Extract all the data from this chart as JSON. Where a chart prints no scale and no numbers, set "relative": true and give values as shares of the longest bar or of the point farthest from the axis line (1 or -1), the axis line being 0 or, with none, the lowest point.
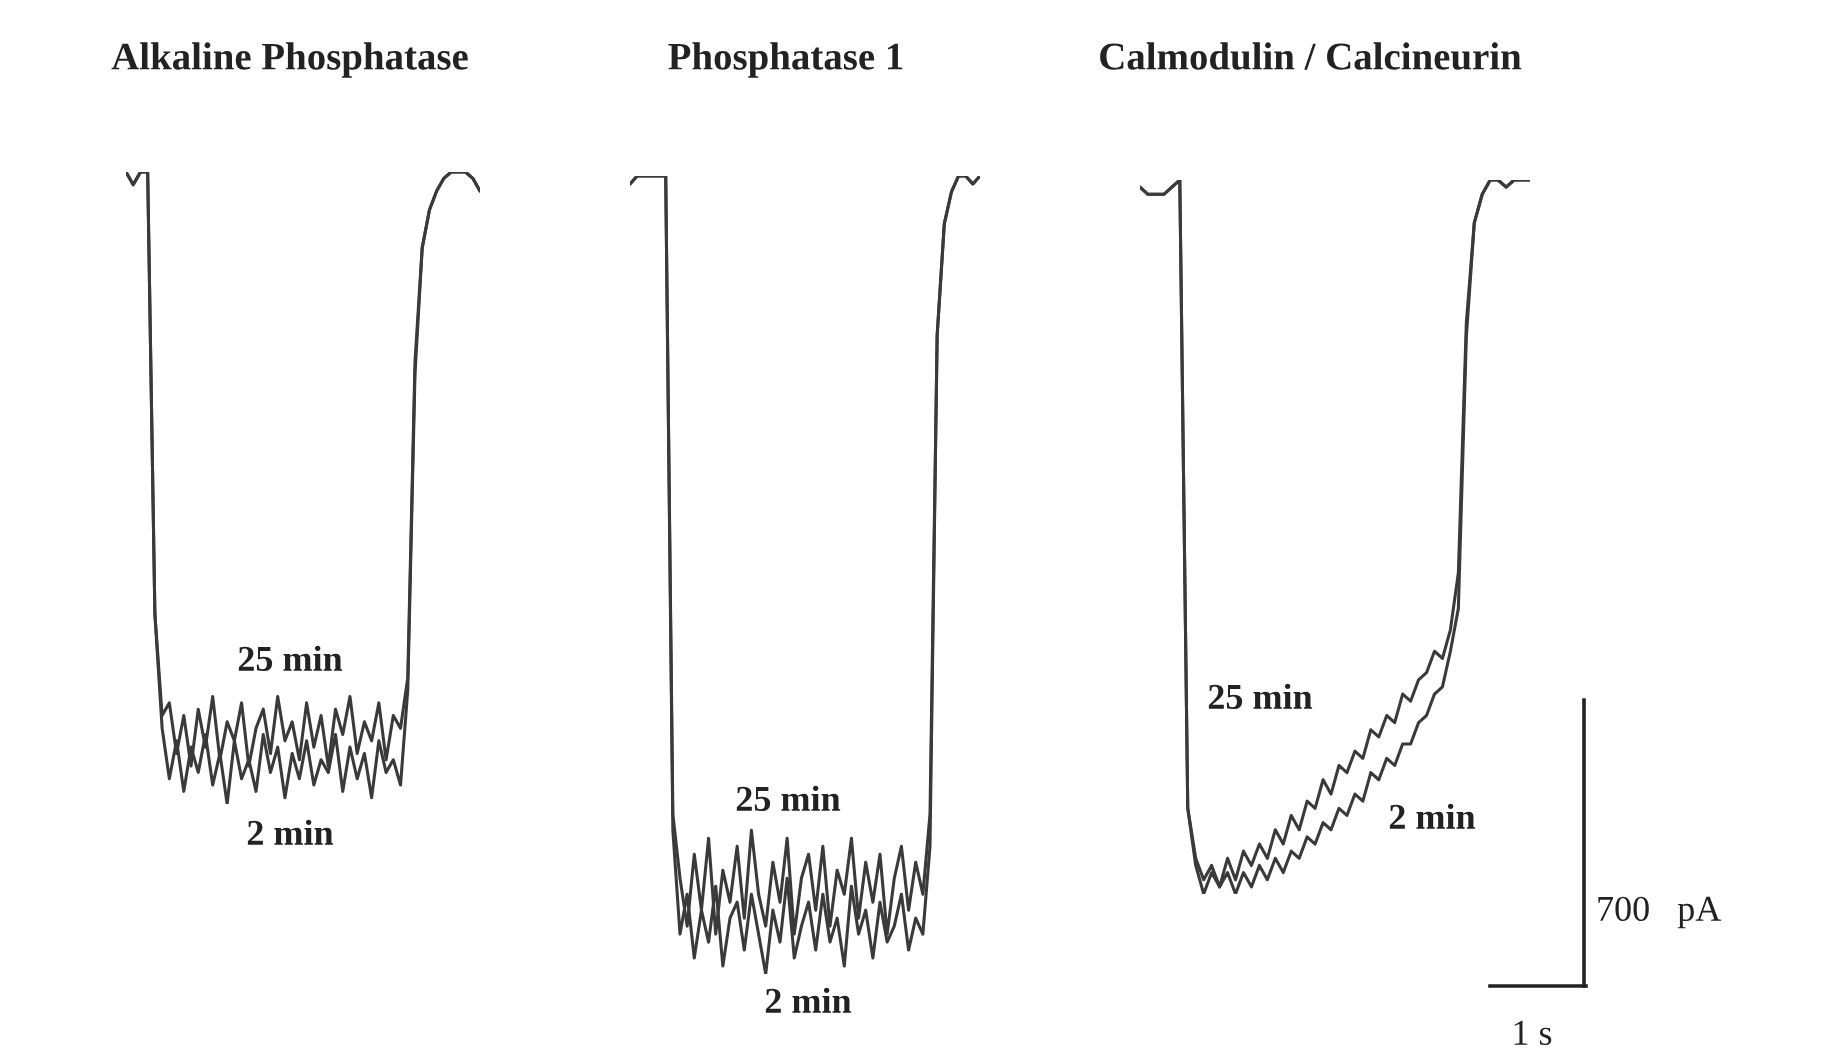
{
  "chart_data": [
    {
      "type": "line",
      "title": "Alkaline Phosphatase",
      "relative": true,
      "categories": [
        null,
        null,
        null,
        null,
        null,
        null,
        null,
        null,
        null,
        null,
        null,
        null,
        null,
        null,
        null,
        null,
        null,
        null,
        null,
        null,
        null,
        null,
        null,
        null,
        null,
        null,
        null,
        null,
        null,
        null,
        null,
        null,
        null,
        null,
        null,
        null,
        null,
        null,
        null,
        null,
        null,
        null,
        null,
        null,
        null,
        null,
        null,
        null,
        null,
        null
      ],
      "series": [
        {
          "name": "25 min",
          "color": "#3a3a3a",
          "values": [
            1.0,
            0.98,
            1.0,
            1.0,
            0.3,
            0.14,
            0.16,
            0.08,
            0.14,
            0.06,
            0.15,
            0.09,
            0.17,
            0.07,
            0.13,
            0.1,
            0.16,
            0.06,
            0.12,
            0.15,
            0.08,
            0.17,
            0.1,
            0.13,
            0.07,
            0.16,
            0.09,
            0.14,
            0.06,
            0.15,
            0.11,
            0.17,
            0.08,
            0.13,
            0.1,
            0.16,
            0.07,
            0.14,
            0.12,
            0.2,
            0.7,
            0.88,
            0.94,
            0.97,
            0.99,
            1.0,
            1.0,
            1.0,
            0.99,
            0.97
          ]
        },
        {
          "name": "2 min",
          "color": "#3a3a3a",
          "values": [
            1.0,
            0.98,
            1.0,
            1.0,
            0.3,
            0.12,
            0.04,
            0.1,
            0.02,
            0.09,
            0.05,
            0.11,
            0.03,
            0.08,
            0,
            0.1,
            0.04,
            0.07,
            0.02,
            0.11,
            0.05,
            0.09,
            0.01,
            0.08,
            0.04,
            0.1,
            0.03,
            0.07,
            0.05,
            0.11,
            0.02,
            0.09,
            0.04,
            0.08,
            0.01,
            0.1,
            0.05,
            0.07,
            0.03,
            0.18,
            0.68,
            0.88,
            0.94,
            0.97,
            0.99,
            1.0,
            1.0,
            1.0,
            0.99,
            0.97
          ]
        }
      ]
    },
    {
      "type": "line",
      "title": "Phosphatase 1",
      "relative": true,
      "categories": [
        null,
        null,
        null,
        null,
        null,
        null,
        null,
        null,
        null,
        null,
        null,
        null,
        null,
        null,
        null,
        null,
        null,
        null,
        null,
        null,
        null,
        null,
        null,
        null,
        null,
        null,
        null,
        null,
        null,
        null,
        null,
        null,
        null,
        null,
        null,
        null,
        null,
        null,
        null,
        null,
        null,
        null,
        null,
        null,
        null,
        null,
        null,
        null,
        null,
        null
      ],
      "series": [
        {
          "name": "25 min",
          "color": "#3a3a3a",
          "values": [
            0.99,
            1.0,
            1.0,
            1.0,
            1.0,
            1.0,
            0.2,
            0.12,
            0.06,
            0.15,
            0.08,
            0.17,
            0.05,
            0.13,
            0.09,
            0.16,
            0.07,
            0.18,
            0.1,
            0.06,
            0.14,
            0.09,
            0.17,
            0.05,
            0.12,
            0.15,
            0.08,
            0.16,
            0.06,
            0.13,
            0.1,
            0.17,
            0.07,
            0.14,
            0.09,
            0.15,
            0.05,
            0.12,
            0.16,
            0.08,
            0.14,
            0.1,
            0.2,
            0.8,
            0.94,
            0.98,
            1.0,
            1.0,
            0.99,
            1.0
          ]
        },
        {
          "name": "2 min",
          "color": "#3a3a3a",
          "values": [
            0.99,
            1.0,
            1.0,
            1.0,
            1.0,
            1.0,
            0.18,
            0.05,
            0.1,
            0.02,
            0.08,
            0.04,
            0.11,
            0.01,
            0.07,
            0.09,
            0.03,
            0.1,
            0.05,
            0,
            0.08,
            0.04,
            0.12,
            0.02,
            0.06,
            0.09,
            0.03,
            0.1,
            0.04,
            0.07,
            0.01,
            0.11,
            0.05,
            0.08,
            0.02,
            0.09,
            0.04,
            0.06,
            0.1,
            0.03,
            0.07,
            0.05,
            0.16,
            0.8,
            0.94,
            0.98,
            1.0,
            1.0,
            0.99,
            1.0
          ]
        }
      ]
    },
    {
      "type": "line",
      "title": "Calmodulin / Calcineurin",
      "relative": true,
      "annotations": [
        "700   pA",
        "1 s"
      ],
      "categories": [
        null,
        null,
        null,
        null,
        null,
        null,
        null,
        null,
        null,
        null,
        null,
        null,
        null,
        null,
        null,
        null,
        null,
        null,
        null,
        null,
        null,
        null,
        null,
        null,
        null,
        null,
        null,
        null,
        null,
        null,
        null,
        null,
        null,
        null,
        null,
        null,
        null,
        null,
        null,
        null,
        null,
        null,
        null,
        null,
        null,
        null,
        null,
        null,
        null,
        null
      ],
      "series": [
        {
          "name": "25 min",
          "color": "#3a3a3a",
          "values": [
            0.99,
            0.98,
            0.98,
            0.98,
            0.99,
            1.0,
            0.12,
            0.05,
            0.02,
            0.04,
            0.01,
            0.05,
            0.02,
            0.06,
            0.04,
            0.07,
            0.05,
            0.09,
            0.07,
            0.11,
            0.09,
            0.13,
            0.12,
            0.16,
            0.14,
            0.18,
            0.17,
            0.2,
            0.19,
            0.23,
            0.22,
            0.25,
            0.24,
            0.28,
            0.27,
            0.3,
            0.31,
            0.34,
            0.33,
            0.37,
            0.45,
            0.8,
            0.94,
            0.98,
            1.0,
            1.0,
            0.99,
            1.0,
            1.0,
            1.0
          ]
        },
        {
          "name": "2 min",
          "color": "#3a3a3a",
          "values": [
            0.99,
            0.98,
            0.98,
            0.98,
            0.99,
            1.0,
            0.12,
            0.04,
            0.0,
            0.03,
            0.01,
            0.03,
            0.0,
            0.03,
            0.01,
            0.04,
            0.02,
            0.05,
            0.03,
            0.06,
            0.05,
            0.08,
            0.07,
            0.1,
            0.09,
            0.12,
            0.11,
            0.14,
            0.13,
            0.17,
            0.16,
            0.19,
            0.18,
            0.21,
            0.21,
            0.24,
            0.25,
            0.28,
            0.29,
            0.34,
            0.4,
            0.78,
            0.94,
            0.98,
            1.0,
            1.0,
            0.99,
            1.0,
            1.0,
            1.0
          ]
        }
      ]
    }
  ]
}
